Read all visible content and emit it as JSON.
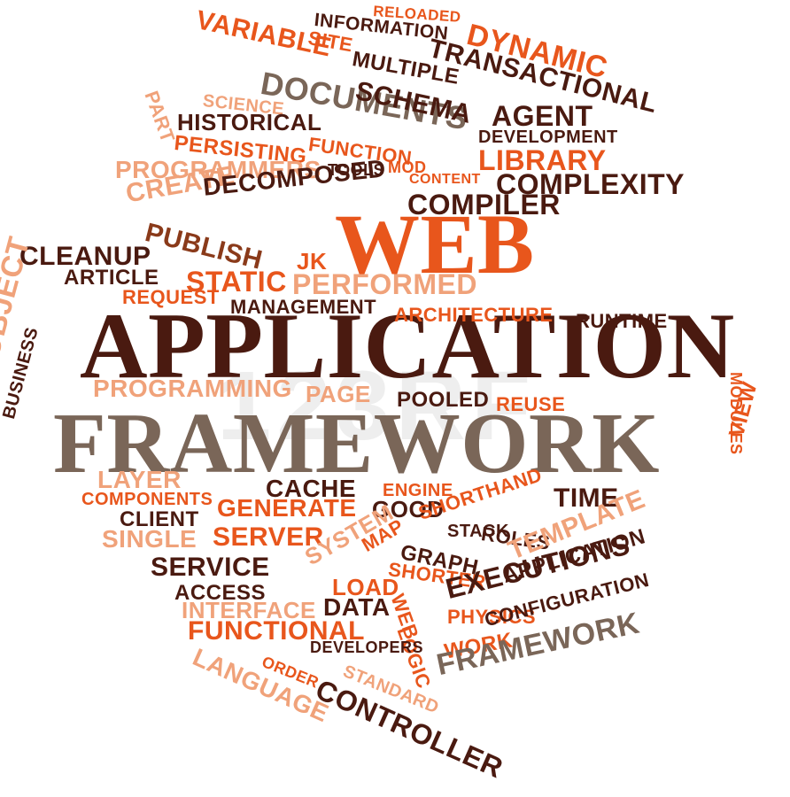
{
  "colors": {
    "orange": "#e8561c",
    "light_orange": "#f0a27a",
    "dark_brown": "#4a1a10",
    "gray_brown": "#7a6658",
    "mid_brown": "#8a3a1a"
  },
  "watermark": "123RF",
  "words": [
    {
      "text": "WEB"
    },
    {
      "text": "APPLICATION"
    },
    {
      "text": "FRAMEWORK"
    },
    {
      "text": "RELOADED"
    },
    {
      "text": "INFORMATION"
    },
    {
      "text": "VARIABLE"
    },
    {
      "text": "DYNAMIC"
    },
    {
      "text": "SITE"
    },
    {
      "text": "MULTIPLE"
    },
    {
      "text": "TRANSACTIONAL"
    },
    {
      "text": "DOCUMENTS"
    },
    {
      "text": "SCHEMA"
    },
    {
      "text": "AGENT"
    },
    {
      "text": "PART"
    },
    {
      "text": "SCIENCE"
    },
    {
      "text": "HISTORICAL"
    },
    {
      "text": "DEVELOPMENT"
    },
    {
      "text": "PERSISTING"
    },
    {
      "text": "FUNCTION"
    },
    {
      "text": "LIBRARY"
    },
    {
      "text": "PROGRAMMERS"
    },
    {
      "text": "TOOLS"
    },
    {
      "text": "MOD"
    },
    {
      "text": "CONTENT"
    },
    {
      "text": "COMPLEXITY"
    },
    {
      "text": "CREATE"
    },
    {
      "text": "DECOMPOSED"
    },
    {
      "text": "COMPILER"
    },
    {
      "text": "PUBLISH"
    },
    {
      "text": "CLEANUP"
    },
    {
      "text": "JK"
    },
    {
      "text": "ARTICLE"
    },
    {
      "text": "STATIC"
    },
    {
      "text": "PERFORMED"
    },
    {
      "text": "REQUEST"
    },
    {
      "text": "MANAGEMENT"
    },
    {
      "text": "ARCHITECTURE"
    },
    {
      "text": "RUNTIME"
    },
    {
      "text": "OBJECT"
    },
    {
      "text": "MODULES"
    },
    {
      "text": "PROGRAMMING"
    },
    {
      "text": "PAGE"
    },
    {
      "text": "POOLED"
    },
    {
      "text": "REUSE"
    },
    {
      "text": "BUSINESS"
    },
    {
      "text": "VIEW"
    },
    {
      "text": "LAYER"
    },
    {
      "text": "CACHE"
    },
    {
      "text": "ENGINE"
    },
    {
      "text": "COMPONENTS"
    },
    {
      "text": "GENERATE"
    },
    {
      "text": "GOOD"
    },
    {
      "text": "SHORTHAND"
    },
    {
      "text": "TIME"
    },
    {
      "text": "CLIENT"
    },
    {
      "text": "SINGLE"
    },
    {
      "text": "SERVER"
    },
    {
      "text": "SYSTEM"
    },
    {
      "text": "MAP"
    },
    {
      "text": "STACK"
    },
    {
      "text": "ROLES"
    },
    {
      "text": "TEMPLATE"
    },
    {
      "text": "SERVICE"
    },
    {
      "text": "SHORTER"
    },
    {
      "text": "GRAPH"
    },
    {
      "text": "APPLICATION"
    },
    {
      "text": "ACCESS"
    },
    {
      "text": "LOAD"
    },
    {
      "text": "WEB"
    },
    {
      "text": "EXECUTIONS"
    },
    {
      "text": "INTERFACE"
    },
    {
      "text": "DATA"
    },
    {
      "text": "LOGIC"
    },
    {
      "text": "PHYSICS"
    },
    {
      "text": "CONFIGURATION"
    },
    {
      "text": "FUNCTIONAL"
    },
    {
      "text": "DEVELOPERS"
    },
    {
      "text": "WORK"
    },
    {
      "text": "LANGUAGE"
    },
    {
      "text": "ORDER"
    },
    {
      "text": "STANDARD"
    },
    {
      "text": "FRAMEWORK"
    },
    {
      "text": "CONTROLLER"
    }
  ]
}
